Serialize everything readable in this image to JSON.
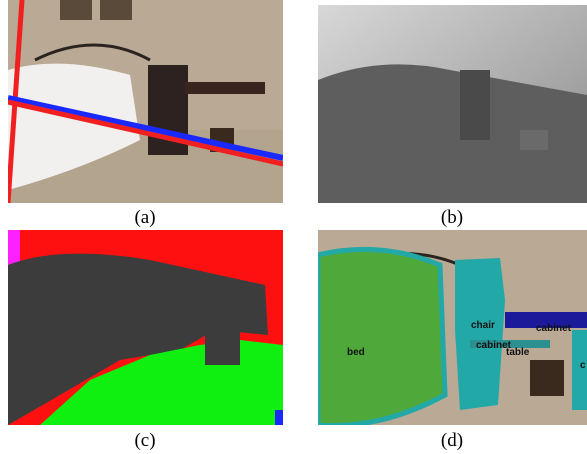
{
  "panels": [
    {
      "caption": "(a)"
    },
    {
      "caption": "(b)"
    },
    {
      "caption": "(c)"
    },
    {
      "caption": "(d)",
      "labels": [
        "chair",
        "cabinet",
        "cabinet",
        "table",
        "bed",
        "c"
      ]
    }
  ]
}
